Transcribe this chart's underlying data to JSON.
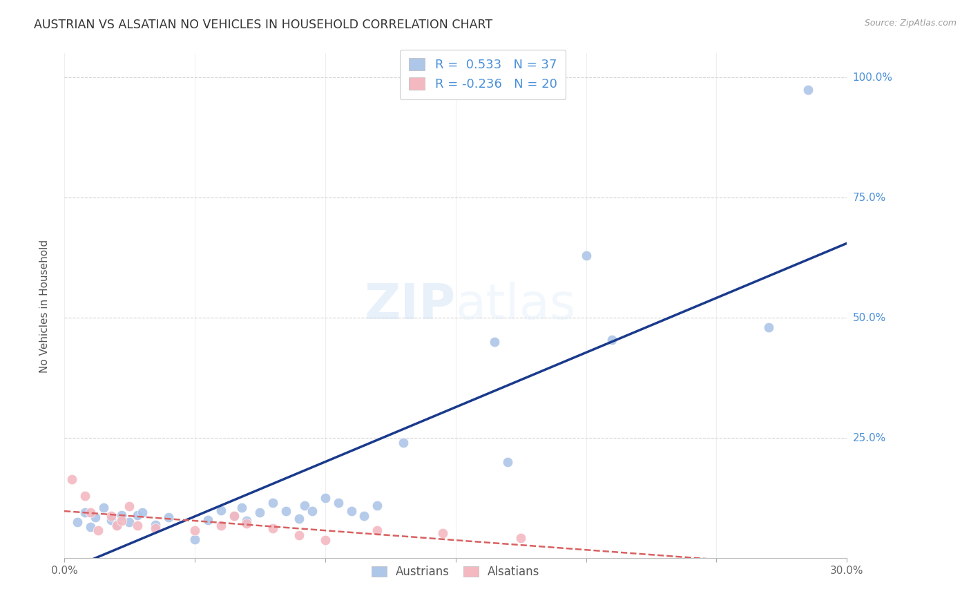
{
  "title": "AUSTRIAN VS ALSATIAN NO VEHICLES IN HOUSEHOLD CORRELATION CHART",
  "source": "Source: ZipAtlas.com",
  "ylabel": "No Vehicles in Household",
  "xlim": [
    0.0,
    0.3
  ],
  "ylim": [
    0.0,
    1.05
  ],
  "x_ticks": [
    0.0,
    0.05,
    0.1,
    0.15,
    0.2,
    0.25,
    0.3
  ],
  "y_ticks": [
    0.0,
    0.25,
    0.5,
    0.75,
    1.0
  ],
  "y_tick_labels": [
    "",
    "25.0%",
    "50.0%",
    "75.0%",
    "100.0%"
  ],
  "grid_color": "#c8c8c8",
  "background_color": "#ffffff",
  "austrians_color": "#aec6e8",
  "alsatians_color": "#f4b8c1",
  "austrians_line_color": "#1a3a8c",
  "alsatians_line_color": "#d96060",
  "R_austrians": 0.533,
  "N_austrians": 37,
  "R_alsatians": -0.236,
  "N_alsatians": 20,
  "watermark_zip": "ZIP",
  "watermark_atlas": "atlas",
  "austrians_x": [
    0.005,
    0.008,
    0.01,
    0.012,
    0.015,
    0.018,
    0.02,
    0.022,
    0.025,
    0.028,
    0.03,
    0.035,
    0.04,
    0.05,
    0.055,
    0.06,
    0.065,
    0.068,
    0.07,
    0.075,
    0.08,
    0.085,
    0.09,
    0.092,
    0.095,
    0.1,
    0.105,
    0.11,
    0.115,
    0.12,
    0.13,
    0.165,
    0.17,
    0.2,
    0.21,
    0.27,
    0.285
  ],
  "austrians_y": [
    0.075,
    0.095,
    0.065,
    0.085,
    0.105,
    0.08,
    0.07,
    0.09,
    0.075,
    0.09,
    0.095,
    0.07,
    0.085,
    0.04,
    0.08,
    0.1,
    0.088,
    0.105,
    0.078,
    0.095,
    0.115,
    0.098,
    0.082,
    0.11,
    0.098,
    0.125,
    0.115,
    0.098,
    0.088,
    0.11,
    0.24,
    0.45,
    0.2,
    0.63,
    0.455,
    0.48,
    0.975
  ],
  "alsatians_x": [
    0.003,
    0.008,
    0.01,
    0.013,
    0.018,
    0.02,
    0.022,
    0.025,
    0.028,
    0.035,
    0.05,
    0.06,
    0.065,
    0.07,
    0.08,
    0.09,
    0.1,
    0.12,
    0.145,
    0.175
  ],
  "alsatians_y": [
    0.165,
    0.13,
    0.095,
    0.058,
    0.088,
    0.068,
    0.078,
    0.108,
    0.068,
    0.062,
    0.058,
    0.068,
    0.088,
    0.072,
    0.062,
    0.048,
    0.038,
    0.058,
    0.052,
    0.042
  ]
}
